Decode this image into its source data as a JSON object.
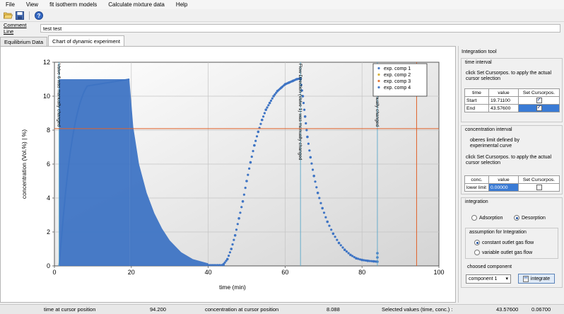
{
  "menu": [
    "File",
    "View",
    "fit isotherm models",
    "Calculate mixture data",
    "Help"
  ],
  "toolbar": {
    "icons": [
      "open-folder-icon",
      "save-icon",
      "help-icon"
    ]
  },
  "comment": {
    "label": "Comment Line",
    "value": "test test"
  },
  "tabs": [
    {
      "label": "Equilibrium Data",
      "active": false
    },
    {
      "label": "Chart of dynamic experiment",
      "active": true
    }
  ],
  "chart_data": {
    "type": "scatter",
    "xlabel": "time (min)",
    "ylabel": "concentration (Vol.%) | %)",
    "xlim": [
      0,
      100
    ],
    "ylim": [
      0,
      12
    ],
    "xticks": [
      0,
      20,
      40,
      60,
      80,
      100
    ],
    "yticks": [
      0,
      2,
      4,
      6,
      8,
      10,
      12
    ],
    "legend": {
      "placement": "top-right",
      "entries": [
        {
          "label": "exp. comp 1",
          "color": "#4a7cc7"
        },
        {
          "label": "exp. comp 2",
          "color": "#d8b23a"
        },
        {
          "label": "exp. comp 3",
          "color": "#e07a3a"
        },
        {
          "label": "exp. comp 4",
          "color": "#4a7cc7"
        }
      ]
    },
    "series_color": "#3e74c4",
    "cursor": {
      "x": 94.2,
      "y": 8.088,
      "color": "#e0622a"
    },
    "markers": [
      {
        "x": 1.2,
        "label": "Valve 6 was manually changed"
      },
      {
        "x": 64.0,
        "label": "Flow Direction (Valve 1) was manually changed"
      },
      {
        "x": 84.0,
        "label": "Valve 3 was manually changed"
      }
    ],
    "bands": [
      {
        "x0": 1.2,
        "x1": 19.5,
        "kind": "rise",
        "top": 11.0
      },
      {
        "x0": 19.5,
        "x1": 40,
        "kind": "fall",
        "top": 11.0
      }
    ],
    "points_rise": [
      [
        44.0,
        0.1
      ],
      [
        45.0,
        0.4
      ],
      [
        46.0,
        1.0
      ],
      [
        47.0,
        1.8
      ],
      [
        48.0,
        2.8
      ],
      [
        49.0,
        3.8
      ],
      [
        50.0,
        5.0
      ],
      [
        51.0,
        6.1
      ],
      [
        52.0,
        7.1
      ],
      [
        53.0,
        7.9
      ],
      [
        54.0,
        8.6
      ],
      [
        55.0,
        9.2
      ],
      [
        56.0,
        9.6
      ],
      [
        57.0,
        10.0
      ],
      [
        58.0,
        10.3
      ],
      [
        59.0,
        10.5
      ],
      [
        60.0,
        10.7
      ],
      [
        61.0,
        10.8
      ],
      [
        62.0,
        10.9
      ],
      [
        63.0,
        11.0
      ],
      [
        64.0,
        11.05
      ]
    ],
    "points_fall": [
      [
        64.0,
        11.0
      ],
      [
        64.6,
        10.0
      ],
      [
        65.2,
        8.8
      ],
      [
        65.8,
        7.6
      ],
      [
        66.6,
        6.4
      ],
      [
        67.5,
        5.3
      ],
      [
        68.5,
        4.3
      ],
      [
        69.7,
        3.4
      ],
      [
        71.0,
        2.6
      ],
      [
        72.5,
        1.9
      ],
      [
        74.0,
        1.35
      ],
      [
        75.5,
        0.95
      ],
      [
        77.0,
        0.65
      ],
      [
        78.5,
        0.45
      ],
      [
        80.0,
        0.35
      ],
      [
        81.5,
        0.3
      ],
      [
        83.0,
        0.27
      ],
      [
        84.0,
        0.25
      ],
      [
        84.0,
        0.5
      ],
      [
        84.0,
        0.75
      ]
    ]
  },
  "integration": {
    "title": "Integration tool",
    "time_interval": {
      "title": "time interval",
      "hint": "click Set Cursorpos. to apply the actual cursor selection",
      "headers": [
        "time",
        "value",
        "Set Cursorpos."
      ],
      "rows": [
        {
          "name": "Start",
          "value": "19.71100",
          "checked": true
        },
        {
          "name": "End",
          "value": "43.57600",
          "checked": true
        }
      ]
    },
    "concentration_interval": {
      "title": "concentration interval",
      "note": "oberes limit defined by experimental curve",
      "hint": "click Set Cursorpos. to apply the actual cursor selection",
      "headers": [
        "conc.",
        "value",
        "Set Cursorpos."
      ],
      "rows": [
        {
          "name": "lower limit",
          "value": "0.00000",
          "checked": false
        }
      ]
    },
    "integration_group": {
      "title": "integration",
      "modes": [
        {
          "label": "Adsorption",
          "on": false
        },
        {
          "label": "Desorption",
          "on": true
        }
      ],
      "assumption_title": "assumption for Integration",
      "assumptions": [
        {
          "label": "constant outlet gas flow",
          "on": true
        },
        {
          "label": "variable outlet gas flow",
          "on": false
        }
      ]
    },
    "component": {
      "title": "choosed component",
      "selected": "component 1",
      "button": "integrate"
    }
  },
  "status": {
    "time_label": "time at cursor position",
    "time_value": "94.200",
    "conc_label": "concentration at cursor position",
    "conc_value": "8.088",
    "selected_label": "Selected values (time, conc.) :",
    "selected_time": "43.57600",
    "selected_conc": "0.06700"
  }
}
